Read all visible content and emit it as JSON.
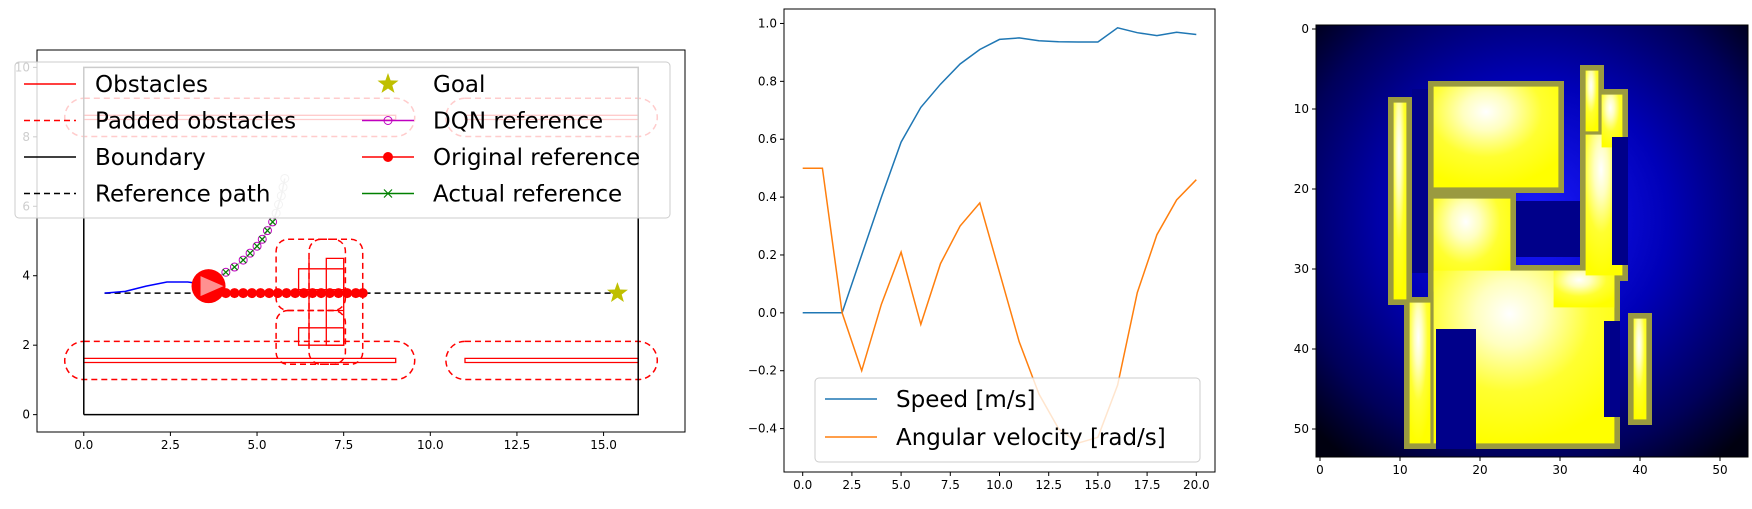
{
  "chart_data": [
    {
      "type": "line",
      "xlim": [
        -1.35,
        17.35
      ],
      "ylim": [
        -0.5,
        10.5
      ],
      "xticks": [
        "0.0",
        "2.5",
        "5.0",
        "7.5",
        "10.0",
        "12.5",
        "15.0"
      ],
      "xtick_values": [
        0,
        2.5,
        5,
        7.5,
        10,
        12.5,
        15
      ],
      "yticks": [
        "0",
        "2",
        "4",
        "6",
        "8",
        "10"
      ],
      "ytick_values": [
        0,
        2,
        4,
        6,
        8,
        10
      ],
      "legend": {
        "placement": "top",
        "entries": [
          {
            "label": "Obstacles",
            "style": "solid",
            "color": "#ff0000",
            "marker": "none"
          },
          {
            "label": "Padded obstacles",
            "style": "dashed",
            "color": "#ff0000",
            "marker": "none"
          },
          {
            "label": "Boundary",
            "style": "solid",
            "color": "#000000",
            "marker": "none"
          },
          {
            "label": "Reference path",
            "style": "dashed",
            "color": "#000000",
            "marker": "none"
          },
          {
            "label": "Goal",
            "style": "none",
            "color": "#bfbf00",
            "marker": "star"
          },
          {
            "label": "DQN reference",
            "style": "solid",
            "color": "#bf00bf",
            "marker": "hollow-circle"
          },
          {
            "label": "Original reference",
            "style": "solid",
            "color": "#ff0000",
            "marker": "filled-circle"
          },
          {
            "label": "Actual reference",
            "style": "solid",
            "color": "#008000",
            "marker": "x"
          }
        ]
      },
      "boundary": [
        [
          0,
          0
        ],
        [
          16,
          0
        ],
        [
          16,
          10
        ],
        [
          0,
          10
        ],
        [
          0,
          0
        ]
      ],
      "obstacles": [
        [
          [
            0,
            1.5
          ],
          [
            9.0,
            1.5
          ],
          [
            9.0,
            1.62
          ],
          [
            0,
            1.62
          ]
        ],
        [
          [
            11.0,
            1.5
          ],
          [
            16,
            1.5
          ],
          [
            16,
            1.62
          ],
          [
            11.0,
            1.62
          ]
        ],
        [
          [
            6.2,
            4.2
          ],
          [
            7.5,
            4.2
          ],
          [
            7.5,
            3.6
          ],
          [
            6.2,
            3.6
          ]
        ],
        [
          [
            7.0,
            4.5
          ],
          [
            7.5,
            4.5
          ],
          [
            7.5,
            2.0
          ],
          [
            7.0,
            2.0
          ]
        ],
        [
          [
            6.2,
            2.5
          ],
          [
            7.5,
            2.5
          ],
          [
            7.5,
            2.0
          ],
          [
            6.2,
            2.0
          ]
        ],
        [
          [
            6.5,
            4.5
          ],
          [
            6.5,
            2.0
          ]
        ],
        [
          [
            7.0,
            3.0
          ],
          [
            7.5,
            3.0
          ]
        ],
        [
          [
            0,
            8.5
          ],
          [
            9.0,
            8.5
          ],
          [
            9.0,
            8.62
          ],
          [
            0,
            8.62
          ]
        ],
        [
          [
            11.0,
            8.5
          ],
          [
            16,
            8.5
          ],
          [
            16,
            8.62
          ],
          [
            11.0,
            8.62
          ]
        ]
      ],
      "padded_obstacles": [
        {
          "cx": 4.5,
          "cy": 1.56,
          "rx": 5.05,
          "ry": 0.55
        },
        {
          "cx": 13.5,
          "cy": 1.56,
          "rx": 3.05,
          "ry": 0.55
        },
        {
          "cx": 4.5,
          "cy": 8.56,
          "rx": 5.05,
          "ry": 0.55
        },
        {
          "cx": 13.5,
          "cy": 8.56,
          "rx": 3.05,
          "ry": 0.55
        }
      ],
      "padded_rects": [
        [
          5.55,
          3.0,
          7.55,
          5.05
        ],
        [
          6.5,
          1.45,
          8.05,
          5.05
        ],
        [
          5.55,
          1.45,
          7.55,
          3.0
        ]
      ],
      "reference_path": {
        "x": [
          0.6,
          15.4
        ],
        "y": [
          3.5,
          3.5
        ]
      },
      "goal": [
        15.4,
        3.5
      ],
      "blue_path": {
        "x": [
          0.6,
          1.2,
          1.8,
          2.4,
          3.0,
          3.3,
          3.6
        ],
        "y": [
          3.5,
          3.55,
          3.7,
          3.82,
          3.82,
          3.78,
          3.7
        ]
      },
      "robot": {
        "x": 3.6,
        "y": 3.7
      },
      "original_reference": {
        "x": [
          3.6,
          3.85,
          4.1,
          4.35,
          4.6,
          4.85,
          5.1,
          5.35,
          5.6,
          5.85,
          6.1,
          6.35,
          6.6,
          6.85,
          7.1,
          7.35,
          7.6,
          7.85,
          8.05
        ],
        "y": [
          3.5,
          3.5,
          3.5,
          3.5,
          3.5,
          3.5,
          3.5,
          3.5,
          3.5,
          3.5,
          3.5,
          3.5,
          3.5,
          3.5,
          3.5,
          3.5,
          3.5,
          3.5,
          3.5
        ]
      },
      "dqn_reference": {
        "x": [
          3.85,
          4.1,
          4.35,
          4.6,
          4.8,
          5.0,
          5.15,
          5.3,
          5.45,
          5.55,
          5.62,
          5.7,
          5.75,
          5.8
        ],
        "y": [
          3.95,
          4.1,
          4.25,
          4.45,
          4.65,
          4.85,
          5.05,
          5.3,
          5.55,
          5.8,
          6.05,
          6.3,
          6.55,
          6.8
        ]
      },
      "actual_reference": {
        "x": [
          3.85,
          4.1,
          4.35,
          4.6,
          4.8,
          5.0,
          5.15,
          5.3,
          5.45
        ],
        "y": [
          3.95,
          4.1,
          4.25,
          4.45,
          4.65,
          4.85,
          5.05,
          5.3,
          5.55
        ]
      }
    },
    {
      "type": "line",
      "xlim": [
        -0.95,
        20.95
      ],
      "ylim": [
        -0.55,
        1.05
      ],
      "xticks": [
        "0.0",
        "2.5",
        "5.0",
        "7.5",
        "10.0",
        "12.5",
        "15.0",
        "17.5",
        "20.0"
      ],
      "xtick_values": [
        0,
        2.5,
        5,
        7.5,
        10,
        12.5,
        15,
        17.5,
        20
      ],
      "yticks": [
        "−0.4",
        "−0.2",
        "0.0",
        "0.2",
        "0.4",
        "0.6",
        "0.8",
        "1.0"
      ],
      "ytick_values": [
        -0.4,
        -0.2,
        0,
        0.2,
        0.4,
        0.6,
        0.8,
        1.0
      ],
      "legend": {
        "placement": "lower center"
      },
      "x": [
        0,
        1,
        2,
        3,
        4,
        5,
        6,
        7,
        8,
        9,
        10,
        11,
        12,
        13,
        14,
        15,
        16,
        17,
        18,
        19,
        20
      ],
      "series": [
        {
          "name": "Speed [m/s]",
          "color": "#1f77b4",
          "values": [
            0,
            0,
            0,
            0.2,
            0.4,
            0.59,
            0.71,
            0.79,
            0.86,
            0.91,
            0.945,
            0.95,
            0.94,
            0.937,
            0.936,
            0.936,
            0.985,
            0.968,
            0.958,
            0.97,
            0.962
          ]
        },
        {
          "name": "Angular velocity [rad/s]",
          "color": "#ff7f0e",
          "values": [
            0.5,
            0.5,
            0,
            -0.2,
            0.03,
            0.21,
            -0.04,
            0.17,
            0.3,
            0.38,
            0.14,
            -0.1,
            -0.28,
            -0.4,
            -0.45,
            -0.43,
            -0.25,
            0.07,
            0.27,
            0.39,
            0.46
          ]
        }
      ]
    },
    {
      "type": "heatmap",
      "xlim": [
        -0.5,
        53.5
      ],
      "ylim": [
        53.5,
        -0.5
      ],
      "xticks": [
        "0",
        "10",
        "20",
        "30",
        "40",
        "50"
      ],
      "xtick_values": [
        0,
        10,
        20,
        30,
        40,
        50
      ],
      "yticks": [
        "0",
        "10",
        "20",
        "30",
        "40",
        "50"
      ],
      "ytick_values": [
        0,
        10,
        20,
        30,
        40,
        50
      ],
      "colormap": {
        "low": "#000000",
        "mid": "#0000cc",
        "high": "#ffff00",
        "peak": "#ffffff"
      },
      "shapes": [
        {
          "kind": "rect",
          "x0": 14,
          "y0": 7,
          "x1": 31,
          "y1": 21
        },
        {
          "kind": "rect",
          "x0": 14,
          "y0": 21,
          "x1": 25,
          "y1": 34
        },
        {
          "kind": "rect",
          "x0": 14,
          "y0": 30,
          "x1": 38,
          "y1": 53
        },
        {
          "kind": "rect",
          "x0": 29,
          "y0": 30,
          "x1": 38,
          "y1": 36
        },
        {
          "kind": "rect",
          "x0": 33,
          "y0": 5,
          "x1": 36,
          "y1": 14
        },
        {
          "kind": "rect",
          "x0": 33,
          "y0": 13,
          "x1": 39,
          "y1": 32
        },
        {
          "kind": "rect",
          "x0": 9,
          "y0": 9,
          "x1": 12,
          "y1": 35
        },
        {
          "kind": "rect",
          "x0": 11,
          "y0": 34,
          "x1": 15,
          "y1": 53
        },
        {
          "kind": "rect",
          "x0": 39,
          "y0": 36,
          "x1": 42,
          "y1": 50
        },
        {
          "kind": "rect",
          "x0": 35,
          "y0": 8,
          "x1": 39,
          "y1": 16
        }
      ],
      "holes": [
        {
          "kind": "rect",
          "x0": 25,
          "y0": 22,
          "x1": 33,
          "y1": 29
        },
        {
          "kind": "rect",
          "x0": 15,
          "y0": 38,
          "x1": 20,
          "y1": 53
        },
        {
          "kind": "rect",
          "x0": 36,
          "y0": 37,
          "x1": 38,
          "y1": 49
        },
        {
          "kind": "rect",
          "x0": 12,
          "y0": 8,
          "x1": 14,
          "y1": 31
        },
        {
          "kind": "rect",
          "x0": 37,
          "y0": 14,
          "x1": 39,
          "y1": 30
        }
      ]
    }
  ]
}
